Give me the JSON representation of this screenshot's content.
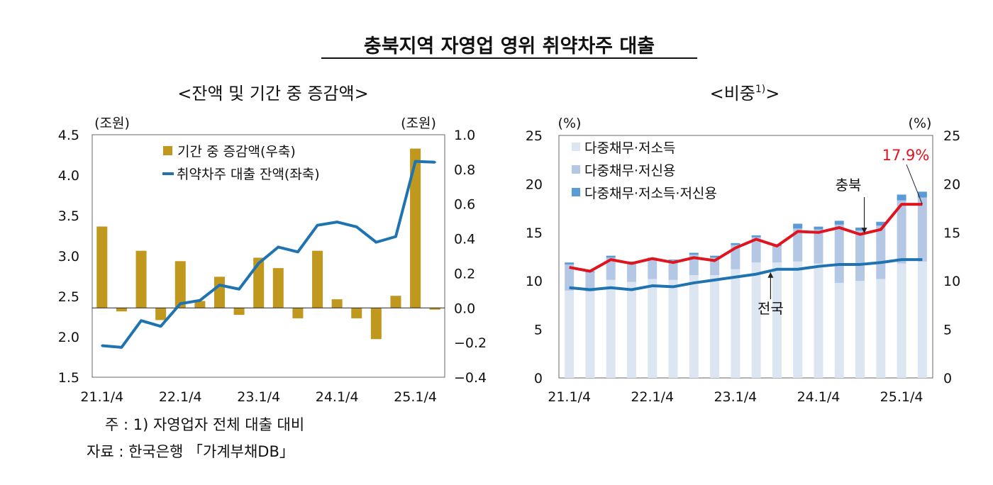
{
  "title": "충북지역 자영업 영위 취약차주 대출",
  "notes": {
    "note": "주 : 1) 자영업자 전체 대출 대비",
    "source": "자료 : 한국은행 「가계부채DB」"
  },
  "chart_data": [
    {
      "type": "bar+line",
      "title": "<잔액 및 기간 중 증감액>",
      "left_unit": "(조원)",
      "right_unit": "(조원)",
      "categories": [
        "21.1/4",
        "21.2/4",
        "21.3/4",
        "21.4/4",
        "22.1/4",
        "22.2/4",
        "22.3/4",
        "22.4/4",
        "23.1/4",
        "23.2/4",
        "23.3/4",
        "23.4/4",
        "24.1/4",
        "24.2/4",
        "24.3/4",
        "24.4/4",
        "25.1/4",
        "25.2/4"
      ],
      "x_tick_labels": [
        "21.1/4",
        "22.1/4",
        "23.1/4",
        "24.1/4",
        "25.1/4"
      ],
      "ylim_left": [
        1.5,
        4.5
      ],
      "yticks_left": [
        "1.5",
        "2.0",
        "2.5",
        "3.0",
        "3.5",
        "4.0",
        "4.5"
      ],
      "ylim_right": [
        -0.4,
        1.0
      ],
      "yticks_right": [
        "−0.4",
        "−0.2",
        "0.0",
        "0.2",
        "0.4",
        "0.6",
        "0.8",
        "1.0"
      ],
      "legend_placement": "top-center",
      "series": [
        {
          "name": "기간 중 증감액(우축)",
          "kind": "bar",
          "axis": "right",
          "color": "#C0981E",
          "values": [
            0.47,
            -0.02,
            0.33,
            -0.07,
            0.27,
            0.04,
            0.18,
            -0.04,
            0.29,
            0.23,
            -0.06,
            0.33,
            0.05,
            -0.06,
            -0.18,
            0.07,
            0.92,
            -0.01
          ]
        },
        {
          "name": "취약차주 대출 잔액(좌축)",
          "kind": "line",
          "axis": "left",
          "color": "#1F73B0",
          "values": [
            1.89,
            1.87,
            2.2,
            2.13,
            2.41,
            2.45,
            2.64,
            2.59,
            2.91,
            3.11,
            3.05,
            3.38,
            3.42,
            3.36,
            3.17,
            3.24,
            4.17,
            4.16
          ]
        }
      ]
    },
    {
      "type": "stacked-bar+line",
      "title": "<비중",
      "title_sup": "1)",
      "title_end": ">",
      "left_unit": "(%)",
      "right_unit": "(%)",
      "categories": [
        "21.1/4",
        "21.2/4",
        "21.3/4",
        "21.4/4",
        "22.1/4",
        "22.2/4",
        "22.3/4",
        "22.4/4",
        "23.1/4",
        "23.2/4",
        "23.3/4",
        "23.4/4",
        "24.1/4",
        "24.2/4",
        "24.3/4",
        "24.4/4",
        "25.1/4",
        "25.2/4"
      ],
      "x_tick_labels": [
        "21.1/4",
        "22.1/4",
        "23.1/4",
        "24.1/4",
        "25.1/4"
      ],
      "ylim": [
        0,
        25
      ],
      "yticks": [
        "0",
        "5",
        "10",
        "15",
        "20",
        "25"
      ],
      "legend_placement": "top-left",
      "series": [
        {
          "name": "다중채무·저소득",
          "kind": "stacked-bar",
          "color": "#DCE6F3",
          "values": [
            9.0,
            8.9,
            10.1,
            9.9,
            10.2,
            10.1,
            10.6,
            10.6,
            11.2,
            11.9,
            11.9,
            12.0,
            11.8,
            9.8,
            10.0,
            10.2,
            11.8,
            12.0
          ]
        },
        {
          "name": "다중채무·저신용",
          "kind": "stacked-bar",
          "color": "#B4C8E6",
          "values": [
            2.7,
            2.0,
            2.3,
            2.0,
            2.1,
            2.0,
            2.1,
            1.8,
            2.5,
            2.6,
            1.7,
            3.4,
            3.5,
            6.0,
            5.2,
            5.5,
            6.5,
            6.6
          ]
        },
        {
          "name": "다중채무·저소득·저신용",
          "kind": "stacked-bar",
          "color": "#5B9BD5",
          "values": [
            0.2,
            0.1,
            0.2,
            0.1,
            0.1,
            0.1,
            0.2,
            0.2,
            0.2,
            0.2,
            0.2,
            0.5,
            0.3,
            0.4,
            0.3,
            0.4,
            0.6,
            0.6
          ]
        },
        {
          "name": "충북",
          "kind": "line",
          "color": "#E0141E",
          "values": [
            11.4,
            11.0,
            12.2,
            11.8,
            12.3,
            11.9,
            12.4,
            12.1,
            13.4,
            14.3,
            13.6,
            15.1,
            15.0,
            15.5,
            14.8,
            15.3,
            17.9,
            17.9
          ]
        },
        {
          "name": "전국",
          "kind": "line",
          "color": "#1F73B0",
          "values": [
            9.3,
            9.1,
            9.3,
            9.1,
            9.5,
            9.4,
            9.8,
            10.1,
            10.4,
            10.7,
            11.2,
            11.2,
            11.5,
            11.7,
            11.7,
            11.9,
            12.2,
            12.2
          ]
        }
      ],
      "annotations": {
        "last_value": "17.9%",
        "region": "충북",
        "nation": "전국"
      }
    }
  ]
}
